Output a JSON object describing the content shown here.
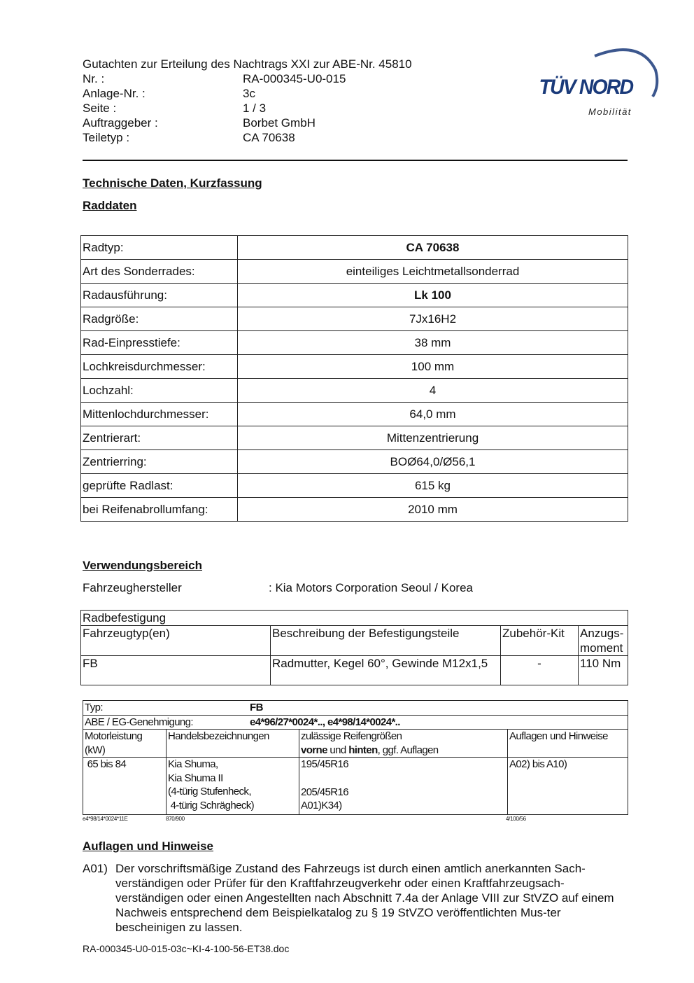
{
  "header": {
    "title": "Gutachten zur Erteilung des Nachtrags XXI zur ABE-Nr. 45810",
    "rows": [
      {
        "label": "Nr. :",
        "value": "RA-000345-U0-015"
      },
      {
        "label": "Anlage-Nr. :",
        "value": "3c"
      },
      {
        "label": "Seite :",
        "value": "1 / 3"
      },
      {
        "label": "Auftraggeber :",
        "value": "Borbet GmbH"
      },
      {
        "label": "Teiletyp :",
        "value": "CA 70638"
      }
    ],
    "logo": {
      "text": "TÜV NORD",
      "sub": "Mobilität",
      "color": "#1a3a7a"
    }
  },
  "section_title": "Technische Daten, Kurzfassung",
  "raddaten": {
    "heading": "Raddaten",
    "rows": [
      {
        "label": "Radtyp:",
        "value": "CA 70638",
        "bold": true
      },
      {
        "label": "Art des Sonderrades:",
        "value": "einteiliges Leichtmetallsonderrad"
      },
      {
        "label": "Radausführung:",
        "value": "Lk 100",
        "bold": true
      },
      {
        "label": "Radgröße:",
        "value": "7Jx16H2"
      },
      {
        "label": "Rad-Einpresstiefe:",
        "value": "38 mm"
      },
      {
        "label": "Lochkreisdurchmesser:",
        "value": "100 mm"
      },
      {
        "label": "Lochzahl:",
        "value": "4"
      },
      {
        "label": "Mittenlochdurchmesser:",
        "value": "64,0 mm"
      },
      {
        "label": "Zentrierart:",
        "value": "Mittenzentrierung"
      },
      {
        "label": "Zentrierring:",
        "value": "BOØ64,0/Ø56,1"
      },
      {
        "label": "geprüfte Radlast:",
        "value": "615 kg"
      },
      {
        "label": "bei Reifenabrollumfang:",
        "value": "2010 mm"
      }
    ]
  },
  "verwendung": {
    "heading": "Verwendungsbereich",
    "hersteller_label": "Fahrzeughersteller",
    "hersteller_value": ":  Kia Motors Corporation Seoul / Korea"
  },
  "radbefestigung": {
    "title": "Radbefestigung",
    "headers": [
      "Fahrzeugtyp(en)",
      "Beschreibung der Befestigungsteile",
      "Zubehör-Kit",
      "Anzugs-moment"
    ],
    "row": [
      "FB",
      "Radmutter, Kegel 60°, Gewinde M12x1,5",
      "-",
      "110 Nm"
    ]
  },
  "typ_table": {
    "typ_label": "Typ:",
    "typ_value": "FB",
    "abe_label": "ABE / EG-Genehmigung:",
    "abe_value": "e4*96/27*0024*..,  e4*98/14*0024*..",
    "headers": {
      "motor": "Motorleistung (kW)",
      "handel": "Handelsbezeichnungen",
      "reifen_1": "zulässige Reifengrößen",
      "reifen_bold1": "vorne",
      "reifen_und": " und ",
      "reifen_bold2": "hinten",
      "reifen_rest": ", ggf. Auflagen",
      "auflagen": "Auflagen und Hinweise"
    },
    "row": {
      "motor": "65 bis 84",
      "handel": [
        "Kia Shuma,",
        "Kia Shuma II",
        "(4-türig Stufenheck,",
        " 4-türig Schrägheck)"
      ],
      "reifen": [
        "195/45R16",
        "205/45R16",
        "A01)K34)"
      ],
      "auflagen": "A02) bis A10)"
    },
    "footnotes": [
      "e4*98/14*0024*11E",
      "870/900",
      "4/100/56"
    ]
  },
  "auflagen": {
    "heading": "Auflagen und Hinweise",
    "items": [
      {
        "code": "A01)",
        "text": "Der vorschriftsmäßige Zustand des Fahrzeugs ist durch einen amtlich anerkannten Sach-verständigen oder Prüfer für den Kraftfahrzeugverkehr oder einen Kraftfahrzeugsach-verständigen oder einen Angestellten nach Abschnitt 7.4a der Anlage VIII zur StVZO auf einem Nachweis entsprechend dem Beispielkatalog zu § 19 StVZO veröffentlichten Mus-ter bescheinigen zu lassen."
      }
    ]
  },
  "footer": "RA-000345-U0-015-03c~KI-4-100-56-ET38.doc"
}
